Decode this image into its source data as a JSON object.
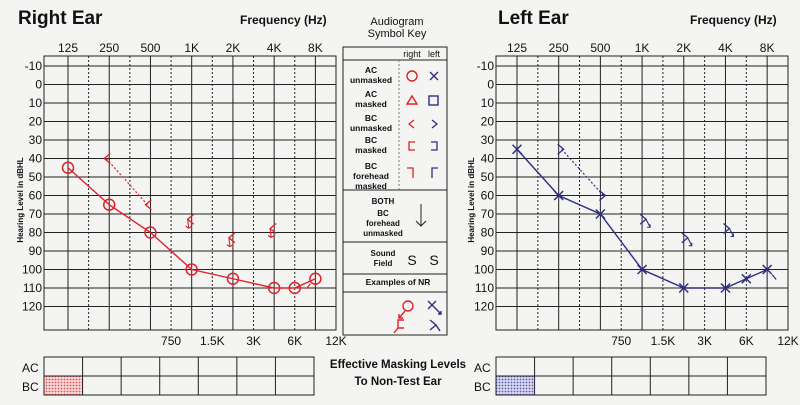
{
  "chart_data": [
    {
      "type": "line",
      "title": "Right Ear",
      "xlabel": "Frequency (Hz)",
      "ylabel": "Hearing Level in dBHL",
      "x_top_ticks": [
        "125",
        "250",
        "500",
        "1K",
        "2K",
        "4K",
        "8K"
      ],
      "x_bottom_ticks": [
        "750",
        "1.5K",
        "3K",
        "6K",
        "12K"
      ],
      "y_ticks": [
        "-10",
        "0",
        "10",
        "20",
        "30",
        "40",
        "50",
        "60",
        "70",
        "80",
        "90",
        "100",
        "110",
        "120"
      ],
      "ylim": [
        -10,
        120
      ],
      "color": "#e0202a",
      "series": [
        {
          "symbol": "AC unmasked",
          "values": [
            {
              "x": "125",
              "y": 45
            },
            {
              "x": "250",
              "y": 65
            },
            {
              "x": "500",
              "y": 80
            },
            {
              "x": "1K",
              "y": 100
            },
            {
              "x": "2K",
              "y": 105
            },
            {
              "x": "4K",
              "y": 110
            },
            {
              "x": "6K",
              "y": 110
            },
            {
              "x": "8K",
              "y": 105
            }
          ]
        },
        {
          "symbol": "BC unmasked",
          "values": [
            {
              "x": "250",
              "y": 40
            },
            {
              "x": "500",
              "y": 65
            }
          ]
        },
        {
          "symbol": "BC unmasked (no response)",
          "values": [
            {
              "x": "1K",
              "y": 75
            },
            {
              "x": "2K",
              "y": 85
            },
            {
              "x": "4K",
              "y": 80
            }
          ]
        }
      ]
    },
    {
      "type": "line",
      "title": "Left Ear",
      "xlabel": "Frequency (Hz)",
      "ylabel": "Hearing Level in dBHL",
      "x_top_ticks": [
        "125",
        "250",
        "500",
        "1K",
        "2K",
        "4K",
        "8K"
      ],
      "x_bottom_ticks": [
        "750",
        "1.5K",
        "3K",
        "6K",
        "12K"
      ],
      "y_ticks": [
        "-10",
        "0",
        "10",
        "20",
        "30",
        "40",
        "50",
        "60",
        "70",
        "80",
        "90",
        "100",
        "110",
        "120"
      ],
      "ylim": [
        -10,
        120
      ],
      "color": "#2e2e86",
      "series": [
        {
          "symbol": "AC unmasked",
          "values": [
            {
              "x": "125",
              "y": 35
            },
            {
              "x": "250",
              "y": 60
            },
            {
              "x": "500",
              "y": 70
            },
            {
              "x": "1K",
              "y": 100
            },
            {
              "x": "2K",
              "y": 110
            },
            {
              "x": "4K",
              "y": 110
            },
            {
              "x": "6K",
              "y": 105
            },
            {
              "x": "8K",
              "y": 100
            }
          ]
        },
        {
          "symbol": "BC unmasked",
          "values": [
            {
              "x": "250",
              "y": 35
            },
            {
              "x": "500",
              "y": 60
            }
          ]
        },
        {
          "symbol": "BC unmasked (no response)",
          "values": [
            {
              "x": "1K",
              "y": 75
            },
            {
              "x": "2K",
              "y": 85
            },
            {
              "x": "4K",
              "y": 80
            }
          ]
        }
      ]
    }
  ],
  "key": {
    "title_line1": "Audiogram",
    "title_line2": "Symbol Key",
    "col_right": "right",
    "col_left": "left",
    "rows": [
      {
        "line1": "AC",
        "line2": "unmasked",
        "line3": ""
      },
      {
        "line1": "AC",
        "line2": "masked",
        "line3": ""
      },
      {
        "line1": "BC",
        "line2": "unmasked",
        "line3": ""
      },
      {
        "line1": "BC",
        "line2": "masked",
        "line3": ""
      },
      {
        "line1": "BC",
        "line2": "forehead",
        "line3": "masked"
      }
    ],
    "both": {
      "line1": "BOTH",
      "line2": "BC",
      "line3": "forehead",
      "line4": "unmasked"
    },
    "sound_field": {
      "line1": "Sound",
      "line2": "Field",
      "symbol": "S"
    },
    "nr_title": "Examples of NR"
  },
  "masking": {
    "title_line1": "Effective Masking Levels",
    "title_line2": "To Non-Test Ear",
    "row_labels": [
      "AC",
      "BC"
    ],
    "right_fill": "#e05050",
    "left_fill": "#5a5ab4"
  }
}
